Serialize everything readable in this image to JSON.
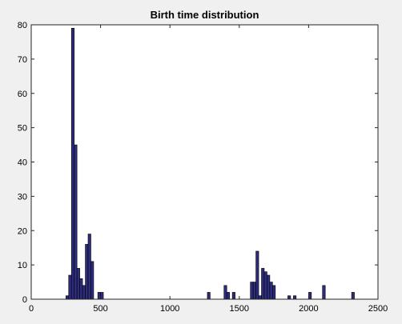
{
  "figure": {
    "background": "#f0f0f0",
    "axes_background": "#ffffff",
    "bar_color": "#2e2c7c",
    "bar_edge_color": "#000000"
  },
  "chart_data": {
    "type": "bar",
    "title": "Birth time distribution",
    "xlabel": "",
    "ylabel": "",
    "xlim": [
      0,
      2500
    ],
    "ylim": [
      0,
      80
    ],
    "xticks": [
      0,
      500,
      1000,
      1500,
      2000,
      2500
    ],
    "yticks": [
      0,
      10,
      20,
      30,
      40,
      50,
      60,
      70,
      80
    ],
    "xtick_labels": [
      "0",
      "500",
      "1000",
      "1500",
      "2000",
      "2500"
    ],
    "ytick_labels": [
      "0",
      "10",
      "20",
      "30",
      "40",
      "50",
      "60",
      "70",
      "80"
    ],
    "grid": false,
    "bin_width": 20,
    "bins": [
      {
        "x": 260,
        "count": 1
      },
      {
        "x": 280,
        "count": 7
      },
      {
        "x": 300,
        "count": 79
      },
      {
        "x": 320,
        "count": 45
      },
      {
        "x": 340,
        "count": 9
      },
      {
        "x": 360,
        "count": 6
      },
      {
        "x": 380,
        "count": 4
      },
      {
        "x": 400,
        "count": 16
      },
      {
        "x": 420,
        "count": 19
      },
      {
        "x": 440,
        "count": 11
      },
      {
        "x": 490,
        "count": 2
      },
      {
        "x": 510,
        "count": 2
      },
      {
        "x": 1280,
        "count": 2
      },
      {
        "x": 1400,
        "count": 4
      },
      {
        "x": 1420,
        "count": 2
      },
      {
        "x": 1460,
        "count": 2
      },
      {
        "x": 1590,
        "count": 5
      },
      {
        "x": 1610,
        "count": 5
      },
      {
        "x": 1630,
        "count": 14
      },
      {
        "x": 1650,
        "count": 1
      },
      {
        "x": 1670,
        "count": 9
      },
      {
        "x": 1690,
        "count": 8
      },
      {
        "x": 1710,
        "count": 7
      },
      {
        "x": 1730,
        "count": 5
      },
      {
        "x": 1750,
        "count": 4
      },
      {
        "x": 1860,
        "count": 1
      },
      {
        "x": 1900,
        "count": 1
      },
      {
        "x": 2010,
        "count": 2
      },
      {
        "x": 2110,
        "count": 4
      },
      {
        "x": 2320,
        "count": 2
      }
    ]
  }
}
